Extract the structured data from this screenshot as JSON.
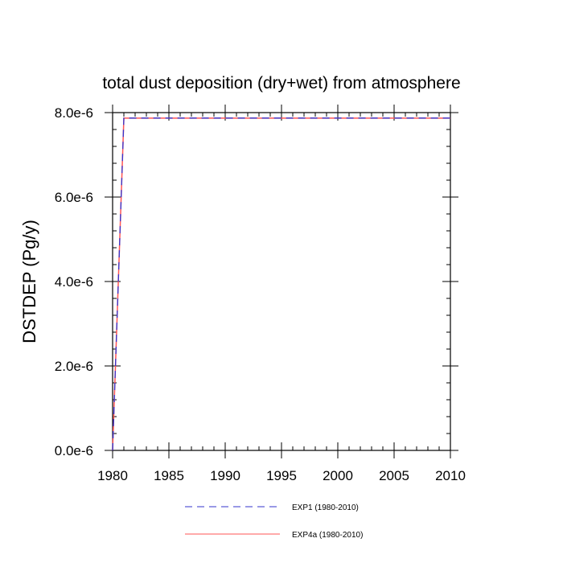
{
  "chart_data": {
    "type": "line",
    "title": "total dust deposition (dry+wet) from atmosphere",
    "ylabel": "DSTDEP  (Pg/y)",
    "xlabel": "",
    "xlim": [
      1980,
      2010
    ],
    "ylim": [
      0,
      8e-06
    ],
    "x_ticks": [
      1980,
      1985,
      1990,
      1995,
      2000,
      2005,
      2010
    ],
    "x_tick_labels": [
      "1980",
      "1985",
      "1990",
      "1995",
      "2000",
      "2005",
      "2010"
    ],
    "y_ticks": [
      0,
      2e-06,
      4e-06,
      6e-06,
      8e-06
    ],
    "y_tick_labels": [
      "0.0e-6",
      "2.0e-6",
      "4.0e-6",
      "6.0e-6",
      "8.0e-6"
    ],
    "grid": false,
    "legend_position": "bottom",
    "series": [
      {
        "name": "EXP1 (1980-2010)",
        "color": "#3333cc",
        "style": "dashed",
        "x": [
          1980,
          1981,
          1982,
          1983,
          1984,
          1985,
          1986,
          1987,
          1988,
          1989,
          1990,
          1991,
          1992,
          1993,
          1994,
          1995,
          1996,
          1997,
          1998,
          1999,
          2000,
          2001,
          2002,
          2003,
          2004,
          2005,
          2006,
          2007,
          2008,
          2009,
          2010
        ],
        "y": [
          0,
          7.87e-06,
          7.87e-06,
          7.87e-06,
          7.87e-06,
          7.87e-06,
          7.87e-06,
          7.87e-06,
          7.87e-06,
          7.87e-06,
          7.87e-06,
          7.87e-06,
          7.87e-06,
          7.87e-06,
          7.87e-06,
          7.87e-06,
          7.87e-06,
          7.87e-06,
          7.87e-06,
          7.87e-06,
          7.87e-06,
          7.87e-06,
          7.87e-06,
          7.87e-06,
          7.87e-06,
          7.87e-06,
          7.87e-06,
          7.87e-06,
          7.87e-06,
          7.87e-06,
          7.87e-06
        ]
      },
      {
        "name": "EXP4a (1980-2010)",
        "color": "#ff5555",
        "style": "solid",
        "x": [
          1980,
          1981,
          1982,
          1983,
          1984,
          1985,
          1986,
          1987,
          1988,
          1989,
          1990,
          1991,
          1992,
          1993,
          1994,
          1995,
          1996,
          1997,
          1998,
          1999,
          2000,
          2001,
          2002,
          2003,
          2004,
          2005,
          2006,
          2007,
          2008,
          2009,
          2010
        ],
        "y": [
          0,
          7.87e-06,
          7.87e-06,
          7.87e-06,
          7.87e-06,
          7.87e-06,
          7.87e-06,
          7.87e-06,
          7.87e-06,
          7.87e-06,
          7.87e-06,
          7.87e-06,
          7.87e-06,
          7.87e-06,
          7.87e-06,
          7.87e-06,
          7.87e-06,
          7.87e-06,
          7.87e-06,
          7.87e-06,
          7.87e-06,
          7.87e-06,
          7.87e-06,
          7.87e-06,
          7.87e-06,
          7.87e-06,
          7.87e-06,
          7.87e-06,
          7.87e-06,
          7.87e-06,
          7.87e-06
        ]
      }
    ]
  }
}
